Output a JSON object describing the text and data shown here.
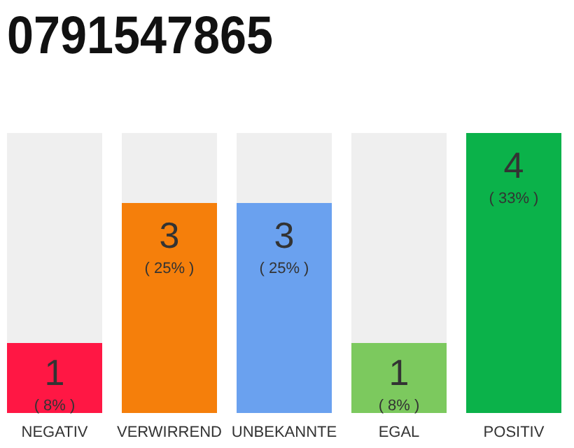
{
  "chart_data": {
    "type": "bar",
    "title": "0791547865",
    "categories": [
      "NEGATIV",
      "VERWIRREND",
      "UNBEKANNTE",
      "EGAL",
      "POSITIV"
    ],
    "values": [
      1,
      3,
      3,
      1,
      4
    ],
    "colors": [
      "#ff1744",
      "#f57f0b",
      "#6aa1ef",
      "#7cc95e",
      "#0bb24a"
    ],
    "value_labels": [
      "1\n( 8% )",
      "3\n( 25% )",
      "3\n( 25% )",
      "1\n( 8% )",
      "4\n( 33% )"
    ]
  }
}
